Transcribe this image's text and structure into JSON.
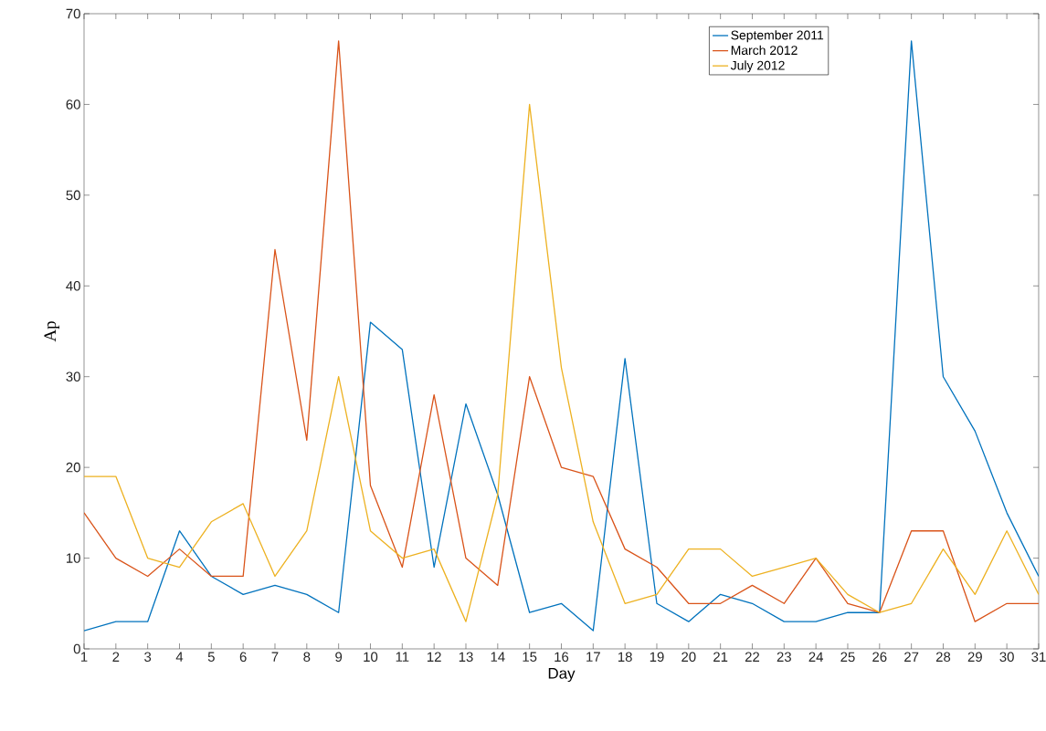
{
  "chart_data": {
    "type": "line",
    "xlabel": "Day",
    "ylabel": "Ap",
    "x": [
      1,
      2,
      3,
      4,
      5,
      6,
      7,
      8,
      9,
      10,
      11,
      12,
      13,
      14,
      15,
      16,
      17,
      18,
      19,
      20,
      21,
      22,
      23,
      24,
      25,
      26,
      27,
      28,
      29,
      30,
      31
    ],
    "xlim": [
      1,
      31
    ],
    "xticks": [
      1,
      2,
      3,
      4,
      5,
      6,
      7,
      8,
      9,
      10,
      11,
      12,
      13,
      14,
      15,
      16,
      17,
      18,
      19,
      20,
      21,
      22,
      23,
      24,
      25,
      26,
      27,
      28,
      29,
      30,
      31
    ],
    "ylim": [
      0,
      70
    ],
    "yticks": [
      0,
      10,
      20,
      30,
      40,
      50,
      60,
      70
    ],
    "legend": "top right",
    "grid": false,
    "marker": "none",
    "line_style": "solid",
    "series": [
      {
        "name": "September 2011",
        "color": "#0072bd",
        "values": [
          2,
          3,
          3,
          13,
          8,
          6,
          7,
          6,
          4,
          36,
          33,
          9,
          27,
          17,
          4,
          5,
          2,
          32,
          5,
          3,
          6,
          5,
          3,
          3,
          4,
          4,
          67,
          30,
          24,
          15,
          8
        ]
      },
      {
        "name": "March 2012",
        "color": "#d95319",
        "values": [
          15,
          10,
          8,
          11,
          8,
          8,
          44,
          23,
          67,
          18,
          9,
          28,
          10,
          7,
          30,
          20,
          19,
          11,
          9,
          5,
          5,
          7,
          5,
          10,
          5,
          4,
          13,
          13,
          3,
          5,
          5
        ]
      },
      {
        "name": "July 2012",
        "color": "#edb120",
        "values": [
          19,
          19,
          10,
          9,
          14,
          16,
          8,
          13,
          30,
          13,
          10,
          11,
          3,
          17,
          60,
          31,
          14,
          5,
          6,
          11,
          11,
          8,
          9,
          10,
          6,
          4,
          5,
          11,
          6,
          13,
          6
        ]
      }
    ]
  }
}
